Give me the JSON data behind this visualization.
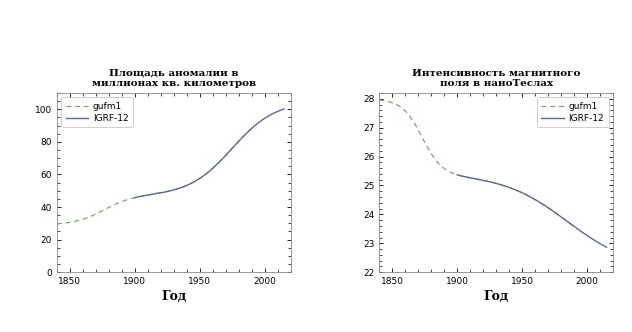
{
  "title1": "Площадь аномалии в\nмиллионах кв. километров",
  "title2": "Интенсивность магнитного\nполя в наноТеслах",
  "xlabel": "Год",
  "legend1": [
    "gufm1",
    "IGRF-12"
  ],
  "legend2": [
    "gufm1",
    "IGRF-12"
  ],
  "xlim": [
    1840,
    2020
  ],
  "ylim1": [
    0,
    110
  ],
  "ylim2": [
    22,
    28.2
  ],
  "yticks1": [
    0,
    20,
    40,
    60,
    80,
    100
  ],
  "yticks2": [
    22,
    23,
    24,
    25,
    26,
    27,
    28
  ],
  "xticks": [
    1850,
    1900,
    1950,
    2000
  ],
  "line_color_solid": "#5a6a9a",
  "line_color_dashed": "#7aaa6a",
  "bg_color": "#ffffff",
  "plot_bg": "#ffffff",
  "title_fontsize": 7.5,
  "xlabel_fontsize": 9,
  "tick_fontsize": 6.5,
  "legend_fontsize": 6.5
}
